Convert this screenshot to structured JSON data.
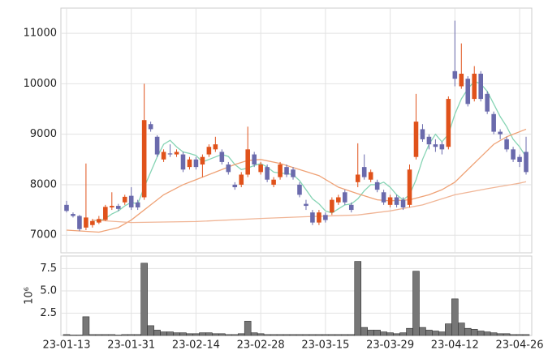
{
  "chart_data": {
    "type": "candlestick",
    "categories": [
      "23-01-13",
      null,
      null,
      null,
      null,
      null,
      null,
      null,
      null,
      null,
      "23-01-31",
      null,
      null,
      null,
      null,
      null,
      null,
      null,
      null,
      null,
      "23-02-14",
      null,
      null,
      null,
      null,
      null,
      null,
      null,
      null,
      null,
      "23-02-28",
      null,
      null,
      null,
      null,
      null,
      null,
      null,
      null,
      null,
      "23-03-15",
      null,
      null,
      null,
      null,
      null,
      null,
      null,
      null,
      null,
      "23-03-29",
      null,
      null,
      null,
      null,
      null,
      null,
      null,
      null,
      null,
      "23-04-12",
      null,
      null,
      null,
      null,
      null,
      null,
      null,
      null,
      null,
      "23-04-26",
      null
    ],
    "open": [
      7600,
      7420,
      7380,
      7150,
      7200,
      7250,
      7300,
      7550,
      7580,
      7650,
      7780,
      7650,
      7750,
      9200,
      8950,
      8500,
      8620,
      8600,
      8600,
      8350,
      8500,
      8400,
      8600,
      8700,
      8650,
      8400,
      8000,
      8000,
      8200,
      8600,
      8250,
      8350,
      8000,
      8150,
      8350,
      8300,
      8000,
      7620,
      7450,
      7250,
      7400,
      7450,
      7650,
      7850,
      7600,
      8050,
      8350,
      8100,
      8050,
      7850,
      7600,
      7750,
      7700,
      7600,
      8550,
      9100,
      8950,
      8800,
      8800,
      8750,
      10250,
      9950,
      10100,
      9700,
      10200,
      9800,
      9400,
      9050,
      8900,
      8700,
      8550,
      8650
    ],
    "high": [
      7680,
      7450,
      7400,
      8420,
      7320,
      7380,
      7600,
      7850,
      7620,
      7800,
      7950,
      7700,
      10000,
      9250,
      8980,
      8700,
      8800,
      8700,
      8650,
      8550,
      8550,
      8600,
      8800,
      8950,
      8700,
      8450,
      8050,
      8250,
      9150,
      8650,
      8450,
      8400,
      8150,
      8450,
      8400,
      8350,
      8050,
      7700,
      7500,
      7500,
      7450,
      7750,
      7800,
      7900,
      7650,
      8820,
      8600,
      8300,
      8100,
      7900,
      7800,
      7800,
      7750,
      8400,
      9800,
      9200,
      9000,
      8900,
      8850,
      9750,
      11250,
      10800,
      10150,
      10350,
      10250,
      9850,
      9450,
      9100,
      8950,
      8750,
      8600,
      8950
    ],
    "low": [
      7450,
      7350,
      7080,
      7100,
      7150,
      7220,
      7280,
      7500,
      7480,
      7600,
      7500,
      7500,
      7700,
      9050,
      8550,
      8450,
      8550,
      8550,
      8250,
      8300,
      8300,
      8150,
      8550,
      8650,
      8400,
      8200,
      7900,
      7950,
      8150,
      8350,
      8200,
      8050,
      7950,
      8100,
      8150,
      8100,
      7750,
      7500,
      7200,
      7200,
      7250,
      7400,
      7600,
      7600,
      7450,
      7950,
      8100,
      8050,
      7850,
      7600,
      7550,
      7550,
      7500,
      7550,
      8500,
      8850,
      8700,
      8650,
      8600,
      8700,
      9950,
      9900,
      9550,
      9650,
      9650,
      9400,
      9000,
      8900,
      8650,
      8450,
      8350,
      8200
    ],
    "close": [
      7480,
      7380,
      7120,
      7350,
      7280,
      7320,
      7560,
      7580,
      7520,
      7760,
      7550,
      7550,
      9280,
      9100,
      8600,
      8650,
      8600,
      8650,
      8300,
      8500,
      8350,
      8550,
      8750,
      8800,
      8450,
      8250,
      7950,
      8200,
      8700,
      8400,
      8400,
      8100,
      8100,
      8400,
      8200,
      8150,
      7800,
      7580,
      7250,
      7450,
      7300,
      7700,
      7750,
      7650,
      7500,
      8200,
      8150,
      8250,
      7900,
      7650,
      7750,
      7600,
      7550,
      8300,
      9250,
      8900,
      8800,
      8750,
      8700,
      9700,
      10100,
      10200,
      9600,
      10200,
      9700,
      9450,
      9050,
      9000,
      8700,
      8500,
      8450,
      8250
    ],
    "up_color": "#e0521b",
    "down_color": "#6a6aac",
    "lines": [
      {
        "color": "#86d4b4",
        "x": [
          4,
          5,
          6,
          7,
          8,
          9,
          10,
          11,
          12,
          13,
          14,
          15,
          16,
          17,
          18,
          19,
          20,
          21,
          22,
          23,
          24,
          25,
          26,
          27,
          28,
          29,
          30,
          31,
          32,
          33,
          34,
          35,
          36,
          37,
          38,
          39,
          40,
          41,
          42,
          43,
          44,
          45,
          46,
          47,
          48,
          49,
          50,
          51,
          52,
          53,
          54,
          55,
          56,
          57,
          58,
          59,
          60,
          61,
          62,
          63,
          64,
          65,
          66,
          67,
          68,
          69,
          70,
          71
        ],
        "values": [
          7300,
          7280,
          7330,
          7420,
          7480,
          7580,
          7650,
          7620,
          7950,
          8250,
          8550,
          8800,
          8880,
          8750,
          8650,
          8620,
          8580,
          8450,
          8500,
          8550,
          8600,
          8560,
          8400,
          8300,
          8330,
          8380,
          8420,
          8350,
          8250,
          8230,
          8220,
          8200,
          8080,
          7900,
          7720,
          7620,
          7480,
          7440,
          7520,
          7600,
          7620,
          7720,
          7880,
          8000,
          8000,
          8050,
          7950,
          7800,
          7700,
          7800,
          8100,
          8500,
          8800,
          9000,
          8850,
          9000,
          9400,
          9700,
          9900,
          10050,
          10000,
          9850,
          9600,
          9350,
          9150,
          8900,
          8750,
          8550
        ]
      },
      {
        "color": "#efa276",
        "x": [
          0,
          5,
          8,
          10,
          12,
          15,
          18,
          20,
          23,
          26,
          28,
          30,
          33,
          36,
          39,
          42,
          45,
          48,
          50,
          53,
          56,
          58,
          60,
          62,
          64,
          66,
          68,
          70,
          71
        ],
        "values": [
          7100,
          7060,
          7150,
          7300,
          7500,
          7800,
          8000,
          8100,
          8250,
          8400,
          8480,
          8500,
          8420,
          8300,
          8180,
          7950,
          7820,
          7700,
          7680,
          7700,
          7800,
          7900,
          8050,
          8300,
          8550,
          8800,
          8950,
          9050,
          9100
        ]
      },
      {
        "color": "#f0b596",
        "x": [
          4,
          10,
          20,
          30,
          38,
          45,
          50,
          55,
          60,
          65,
          70,
          71
        ],
        "values": [
          7300,
          7250,
          7270,
          7330,
          7370,
          7400,
          7480,
          7600,
          7800,
          7920,
          8030,
          8060
        ]
      }
    ],
    "ylim": [
      6650,
      11500
    ],
    "yticks": [
      7000,
      8000,
      9000,
      10000,
      11000
    ],
    "grid": true,
    "volume": {
      "type": "bar",
      "color": "#777777",
      "ylabel": "10⁶",
      "values": [
        0.1,
        0.05,
        0.05,
        2.1,
        0.1,
        0.1,
        0.1,
        0.1,
        0.05,
        0.1,
        0.1,
        0.1,
        8.1,
        1.1,
        0.6,
        0.4,
        0.4,
        0.3,
        0.3,
        0.2,
        0.2,
        0.3,
        0.3,
        0.2,
        0.2,
        0.1,
        0.1,
        0.2,
        1.6,
        0.3,
        0.2,
        0.1,
        0.1,
        0.1,
        0.1,
        0.1,
        0.1,
        0.1,
        0.1,
        0.1,
        0.1,
        0.1,
        0.1,
        0.1,
        0.1,
        8.3,
        0.9,
        0.6,
        0.6,
        0.4,
        0.3,
        0.2,
        0.3,
        0.8,
        7.2,
        0.9,
        0.6,
        0.5,
        0.4,
        1.3,
        4.1,
        1.4,
        0.8,
        0.7,
        0.5,
        0.4,
        0.3,
        0.2,
        0.2,
        0.1,
        0.1,
        0.1
      ],
      "ylim": [
        0,
        8.9
      ],
      "yticks": [
        2.5,
        {
          "value": 5,
          "label": "5.0"
        },
        7.5
      ]
    }
  }
}
